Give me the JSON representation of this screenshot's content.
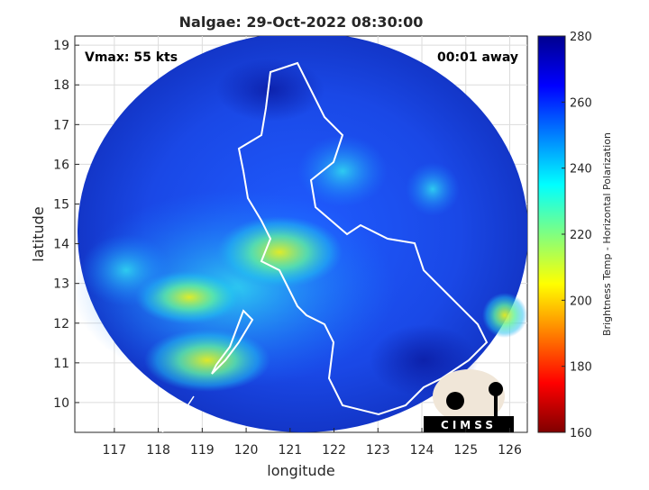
{
  "chart_data": {
    "type": "map",
    "title": "Nalgae: 29-Oct-2022 08:30:00",
    "xlabel": "longitude",
    "ylabel": "latitude",
    "xlim": [
      116.1,
      126.4
    ],
    "ylim": [
      9.25,
      19.23
    ],
    "xticks": [
      117,
      118,
      119,
      120,
      121,
      122,
      123,
      124,
      125,
      126
    ],
    "yticks": [
      10,
      11,
      12,
      13,
      14,
      15,
      16,
      17,
      18,
      19
    ],
    "grid": true,
    "annotations": [
      "Vmax: 55 kts",
      "00:01 away"
    ],
    "colorbar": {
      "label": "Brightness Temp - Horizontal Polarization",
      "lim": [
        160,
        280
      ],
      "ticks": [
        160,
        180,
        200,
        220,
        240,
        260,
        280
      ],
      "colormap": "jet"
    },
    "logo": "CIMSS"
  }
}
